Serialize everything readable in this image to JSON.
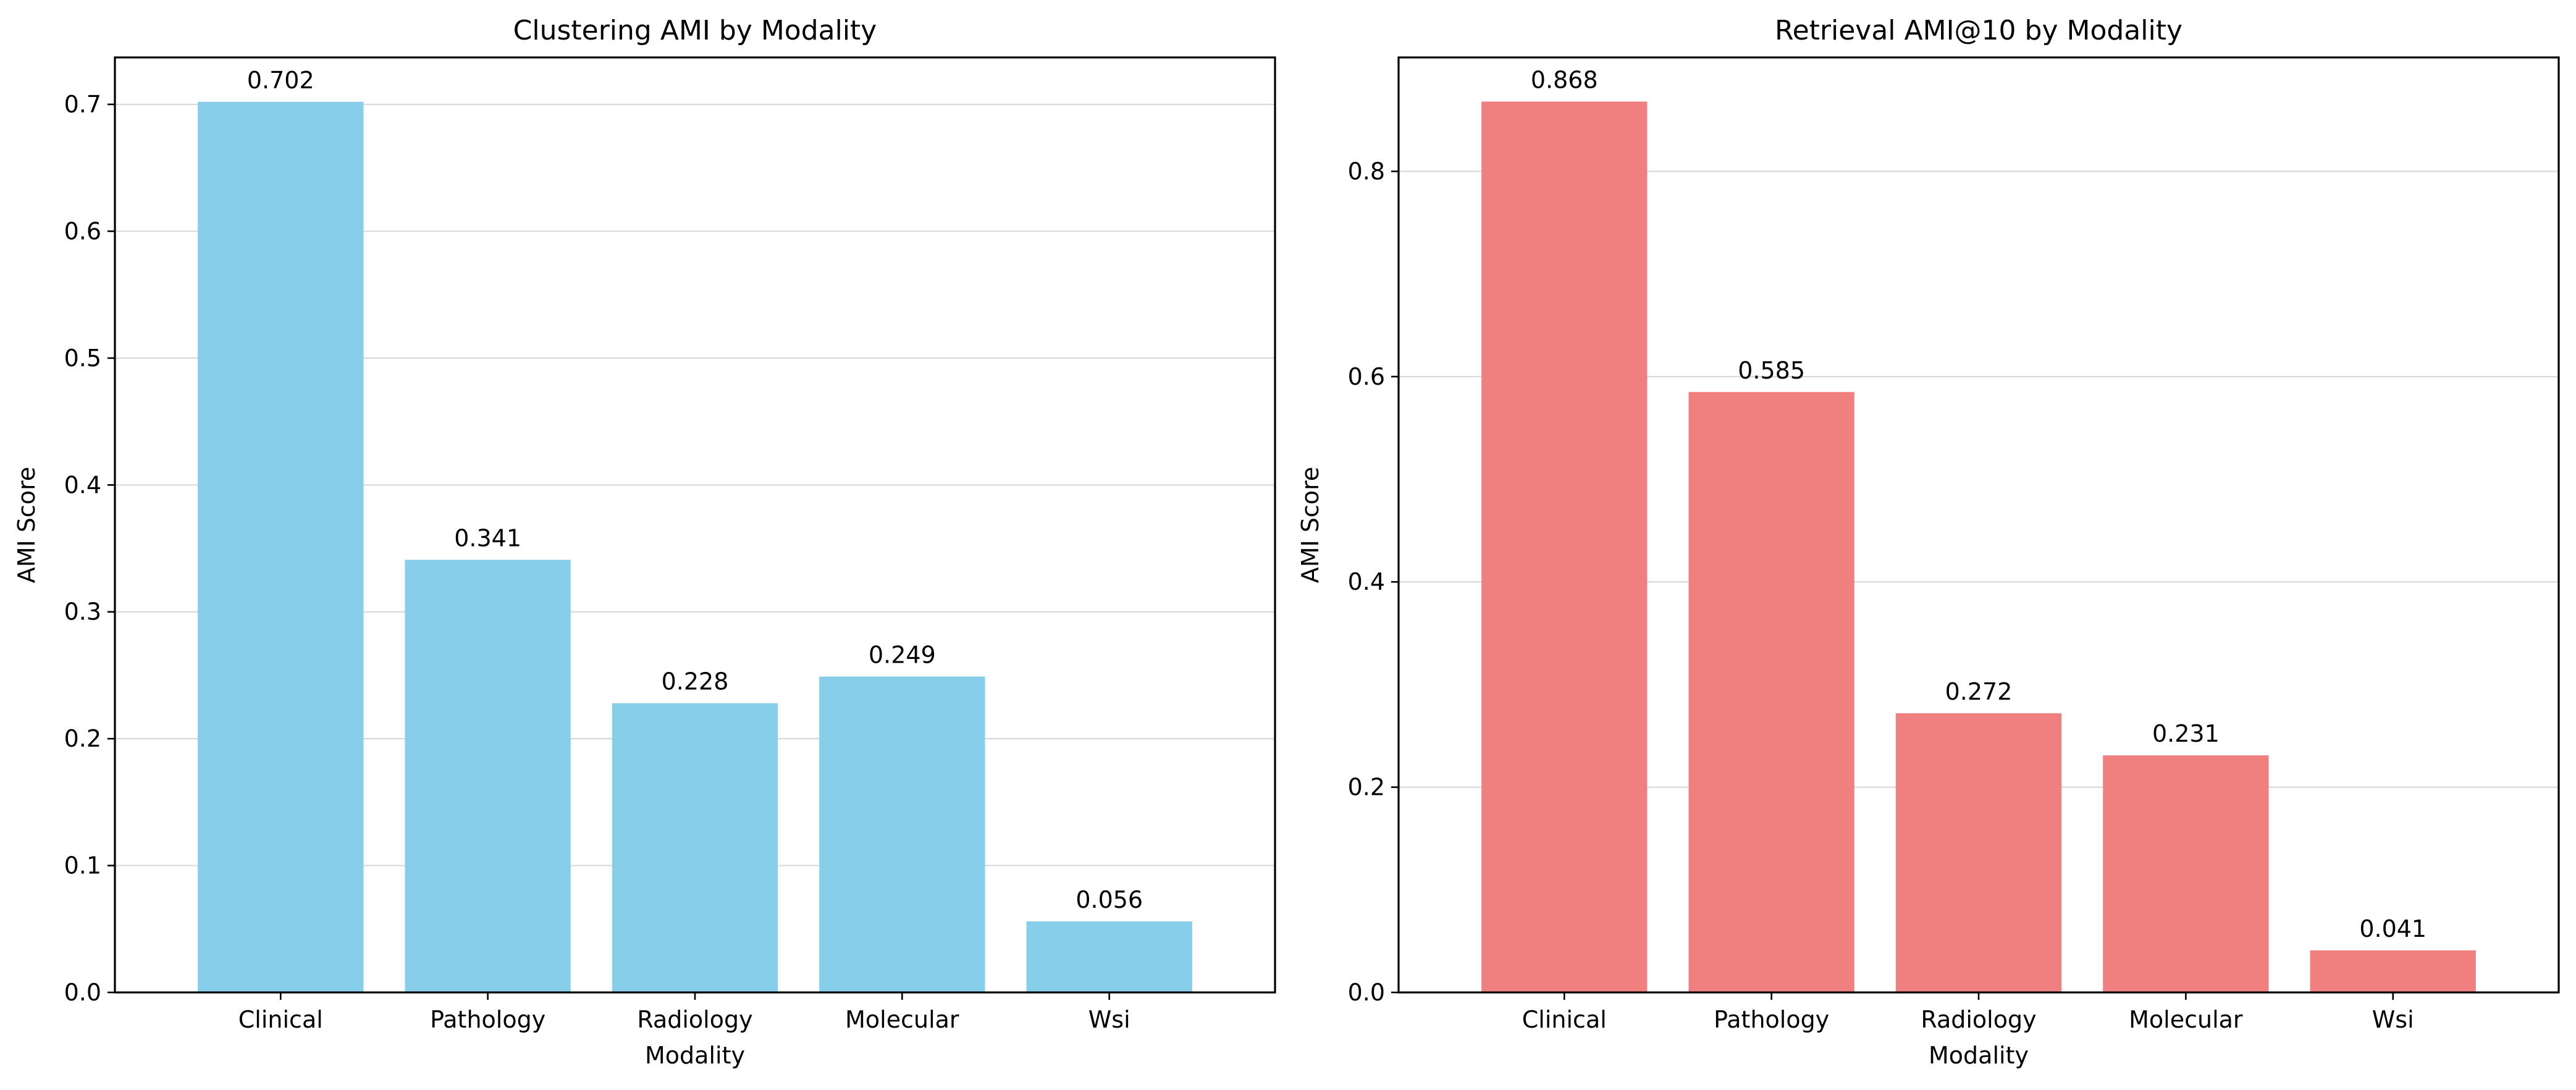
{
  "chart_data": [
    {
      "type": "bar",
      "title": "Clustering AMI by Modality",
      "xlabel": "Modality",
      "ylabel": "AMI Score",
      "categories": [
        "Clinical",
        "Pathology",
        "Radiology",
        "Molecular",
        "Wsi"
      ],
      "values": [
        0.702,
        0.341,
        0.228,
        0.249,
        0.056
      ],
      "value_labels": [
        "0.702",
        "0.341",
        "0.228",
        "0.249",
        "0.056"
      ],
      "ylim": [
        0,
        0.737
      ],
      "yticks": [
        0.0,
        0.1,
        0.2,
        0.3,
        0.4,
        0.5,
        0.6,
        0.7
      ],
      "ytick_labels": [
        "0.0",
        "0.1",
        "0.2",
        "0.3",
        "0.4",
        "0.5",
        "0.6",
        "0.7"
      ],
      "color": "#87CEEB",
      "grid": "y-axis",
      "legend": "none"
    },
    {
      "type": "bar",
      "title": "Retrieval AMI@10 by Modality",
      "xlabel": "Modality",
      "ylabel": "AMI Score",
      "categories": [
        "Clinical",
        "Pathology",
        "Radiology",
        "Molecular",
        "Wsi"
      ],
      "values": [
        0.868,
        0.585,
        0.272,
        0.231,
        0.041
      ],
      "value_labels": [
        "0.868",
        "0.585",
        "0.272",
        "0.231",
        "0.041"
      ],
      "ylim": [
        0,
        0.911
      ],
      "yticks": [
        0.0,
        0.2,
        0.4,
        0.6,
        0.8
      ],
      "ytick_labels": [
        "0.0",
        "0.2",
        "0.4",
        "0.6",
        "0.8"
      ],
      "color": "#F08080",
      "grid": "y-axis",
      "legend": "none"
    }
  ]
}
